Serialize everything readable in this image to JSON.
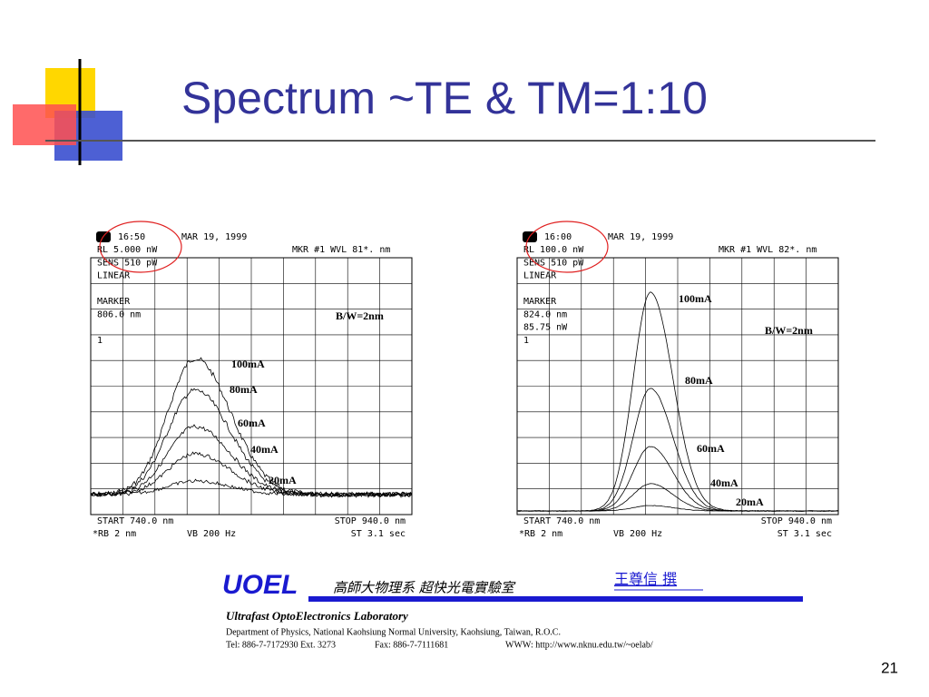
{
  "title": "Spectrum ~TE & TM=1:10",
  "panels": [
    {
      "time": "16:50",
      "date": "MAR 19, 1999",
      "marker_header": "MKR #1 WVL 81*.  nm",
      "settings": [
        "RL 5.000 nW",
        "SENS  510 pW",
        "LINEAR"
      ],
      "marker": [
        "MARKER",
        "806.0 nm"
      ],
      "trace": "1",
      "bandwidth": "B/W=2nm",
      "currents": [
        "100mA",
        "80mA",
        "60mA",
        "40mA",
        "20mA"
      ],
      "start": "START  740.0 nm",
      "stop": "STOP 940.0 nm",
      "rb": "*RB 2 nm",
      "vb": "VB 200 Hz",
      "st": "ST 3.1 sec"
    },
    {
      "time": "16:00",
      "date": "MAR 19, 1999",
      "marker_header": "MKR #1 WVL 82*.  nm",
      "settings": [
        "RL 100.0 nW",
        "SENS  510 pW",
        "LINEAR"
      ],
      "marker": [
        "MARKER",
        "824.0 nm",
        "85.75 nW"
      ],
      "trace": "1",
      "bandwidth": "B/W=2nm",
      "currents": [
        "100mA",
        "80mA",
        "60mA",
        "40mA",
        "20mA"
      ],
      "start": "START  740.0 nm",
      "stop": "STOP 940.0 nm",
      "rb": "*RB 2 nm",
      "vb": "VB 200 Hz",
      "st": "ST 3.1 sec"
    }
  ],
  "footer": {
    "logo": "UOEL",
    "lab_chinese": "高師大物理系 超快光電實驗室",
    "author": "王尊信 撰",
    "lab_name": "Ultrafast OptoElectronics Laboratory",
    "department": "Department of Physics, National Kaohsiung Normal University, Kaohsiung, Taiwan, R.O.C.",
    "tel": "Tel: 886-7-7172930 Ext. 3273",
    "fax": "Fax: 886-7-7111681",
    "www": "WWW: http://www.nknu.edu.tw/~oelab/"
  },
  "page_number": "21"
}
